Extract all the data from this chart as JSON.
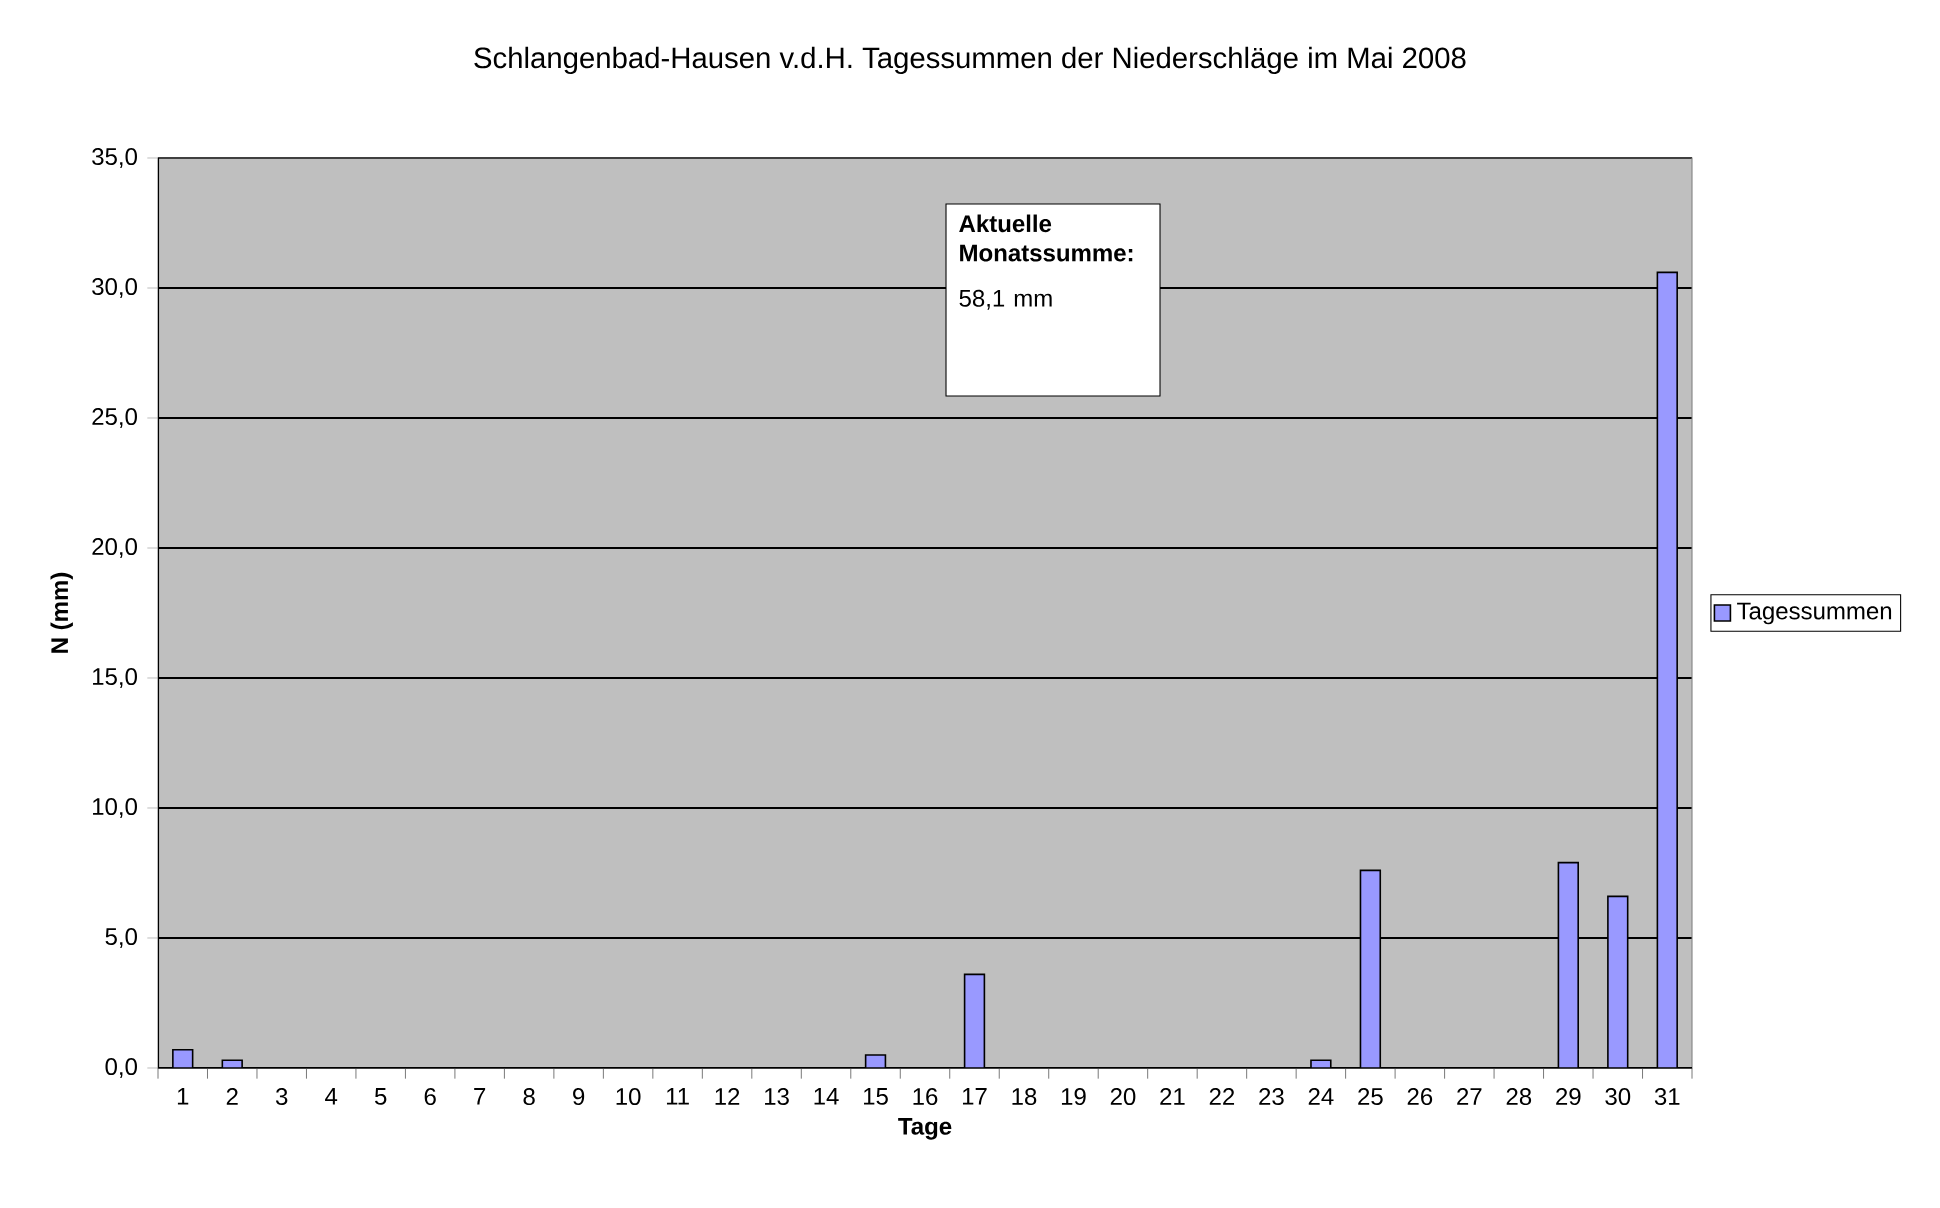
{
  "chart_data": {
    "type": "bar",
    "title": "Schlangenbad-Hausen v.d.H.          Tagessummen der Niederschläge          im Mai  2008",
    "xlabel": "Tage",
    "ylabel": "N (mm)",
    "categories": [
      "1",
      "2",
      "3",
      "4",
      "5",
      "6",
      "7",
      "8",
      "9",
      "10",
      "11",
      "12",
      "13",
      "14",
      "15",
      "16",
      "17",
      "18",
      "19",
      "20",
      "21",
      "22",
      "23",
      "24",
      "25",
      "26",
      "27",
      "28",
      "29",
      "30",
      "31"
    ],
    "series": [
      {
        "name": "Tagessummen",
        "color": "#9999ff",
        "values": [
          0.7,
          0.3,
          0,
          0,
          0,
          0,
          0,
          0,
          0,
          0,
          0,
          0,
          0,
          0,
          0.5,
          0,
          3.6,
          0,
          0,
          0,
          0,
          0,
          0,
          0.3,
          7.6,
          0,
          0,
          0,
          7.9,
          6.6,
          30.6
        ]
      }
    ],
    "ylim": [
      0,
      35
    ],
    "yticks": [
      {
        "value": 0,
        "label": "0,0"
      },
      {
        "value": 5,
        "label": "5,0"
      },
      {
        "value": 10,
        "label": "10,0"
      },
      {
        "value": 15,
        "label": "15,0"
      },
      {
        "value": 20,
        "label": "20,0"
      },
      {
        "value": 25,
        "label": "25,0"
      },
      {
        "value": 30,
        "label": "30,0"
      },
      {
        "value": 35,
        "label": "35,0"
      }
    ],
    "grid": "y",
    "legend": "right",
    "annotations": [
      "Aktuelle Monatssumme:",
      "58,1  mm"
    ]
  }
}
